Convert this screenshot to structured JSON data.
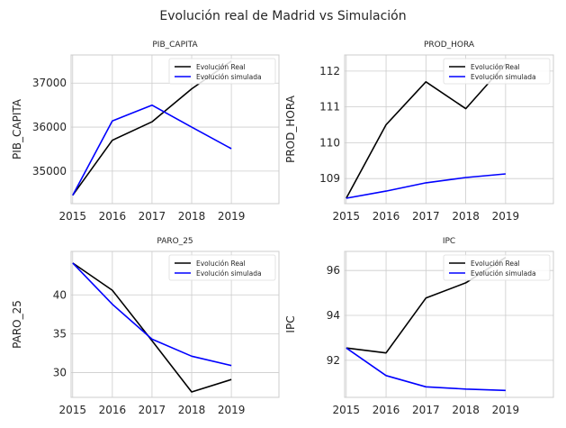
{
  "figure": {
    "title": "Evolución real de Madrid vs Simulación"
  },
  "chart_data": [
    {
      "type": "line",
      "title": "PIB_CAPITA",
      "ylabel": "PIB_CAPITA",
      "xlabel": "",
      "x": [
        2015,
        2016,
        2017,
        2018,
        2019
      ],
      "xlim": [
        2014.96,
        2020.2
      ],
      "ylim": [
        34260,
        37640
      ],
      "yticks": [
        35000,
        36000,
        37000
      ],
      "grid": true,
      "legend_position": "top-right",
      "series": [
        {
          "name": "Evolución Real",
          "color": "#000000",
          "values": [
            34450,
            35700,
            36120,
            36870,
            37500
          ]
        },
        {
          "name": "Evolución simulada",
          "color": "#0000ff",
          "values": [
            34450,
            36140,
            36500,
            36000,
            35510
          ]
        }
      ]
    },
    {
      "type": "line",
      "title": "PROD_HORA",
      "ylabel": "PROD_HORA",
      "xlabel": "",
      "x": [
        2015,
        2016,
        2017,
        2018,
        2019
      ],
      "xlim": [
        2014.96,
        2020.2
      ],
      "ylim": [
        108.3,
        112.45
      ],
      "yticks": [
        109,
        110,
        111,
        112
      ],
      "grid": true,
      "legend_position": "top-right",
      "series": [
        {
          "name": "Evolución Real",
          "color": "#000000",
          "values": [
            108.45,
            110.5,
            111.7,
            110.95,
            112.2
          ]
        },
        {
          "name": "Evolución simulada",
          "color": "#0000ff",
          "values": [
            108.45,
            108.65,
            108.88,
            109.03,
            109.13
          ]
        }
      ]
    },
    {
      "type": "line",
      "title": "PARO_25",
      "ylabel": "PARO_25",
      "xlabel": "",
      "x": [
        2015,
        2016,
        2017,
        2018,
        2019
      ],
      "xlim": [
        2014.96,
        2020.2
      ],
      "ylim": [
        26.8,
        45.6
      ],
      "yticks": [
        30,
        35,
        40
      ],
      "grid": true,
      "legend_position": "top-right",
      "series": [
        {
          "name": "Evolución Real",
          "color": "#000000",
          "values": [
            44.1,
            40.6,
            34.1,
            27.5,
            29.1
          ]
        },
        {
          "name": "Evolución simulada",
          "color": "#0000ff",
          "values": [
            44.1,
            38.8,
            34.3,
            32.1,
            30.9
          ]
        }
      ]
    },
    {
      "type": "line",
      "title": "IPC",
      "ylabel": "IPC",
      "xlabel": "",
      "x": [
        2015,
        2016,
        2017,
        2018,
        2019
      ],
      "xlim": [
        2014.96,
        2020.2
      ],
      "ylim": [
        90.35,
        96.85
      ],
      "yticks": [
        92,
        94,
        96
      ],
      "grid": true,
      "legend_position": "top-right",
      "series": [
        {
          "name": "Evolución Real",
          "color": "#000000",
          "values": [
            92.55,
            92.33,
            94.77,
            95.45,
            96.58
          ]
        },
        {
          "name": "Evolución simulada",
          "color": "#0000ff",
          "values": [
            92.55,
            91.32,
            90.82,
            90.72,
            90.66
          ]
        }
      ]
    }
  ]
}
